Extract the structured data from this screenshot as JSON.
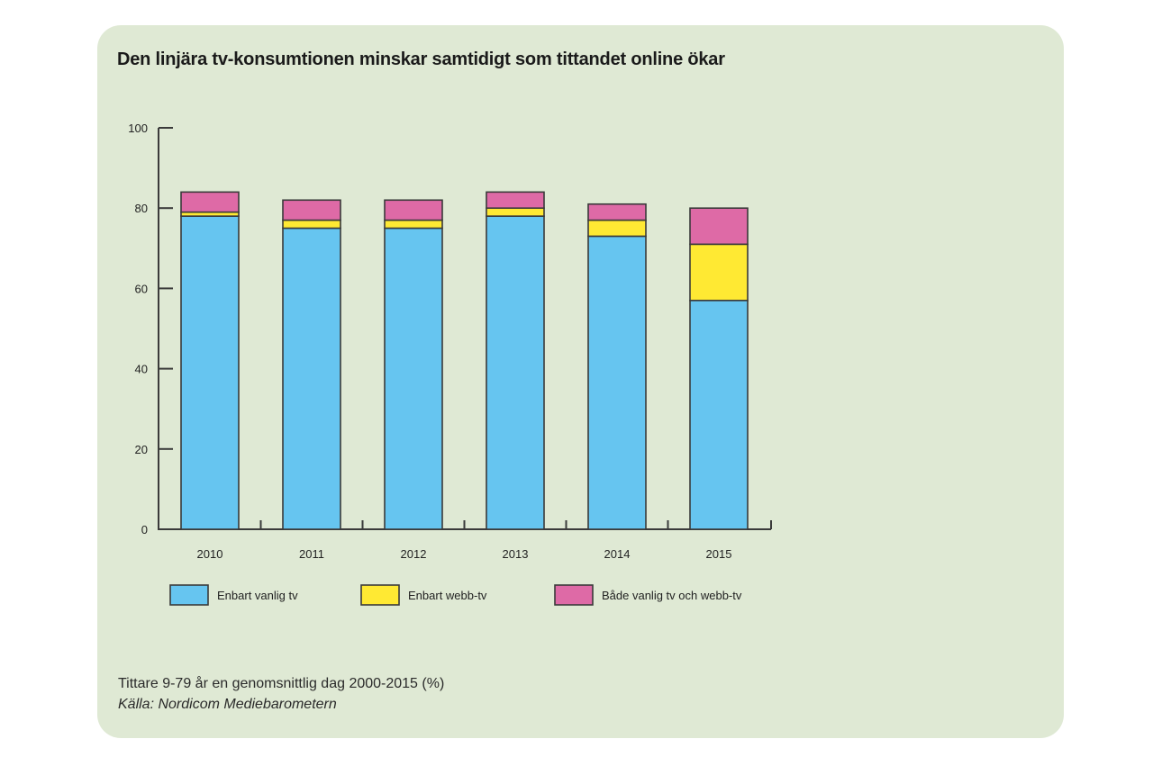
{
  "title": "Den linjära tv-konsumtionen minskar samtidigt som tittandet online ökar",
  "footer": {
    "note": "Tittare 9-79 år en genomsnittlig dag 2000-2015 (%)",
    "source": "Källa: Nordicom Mediebarometern"
  },
  "colors": {
    "card_bg": "#dfe9d4",
    "enbart_vanlig_tv": "#66c5f0",
    "enbart_webb_tv": "#ffe933",
    "bade": "#de6aa6",
    "stroke": "#3a3a3a"
  },
  "chart_data": {
    "type": "bar",
    "stacked": true,
    "title": "Den linjära tv-konsumtionen minskar samtidigt som tittandet online ökar",
    "xlabel": "",
    "ylabel": "",
    "ylim": [
      0,
      100
    ],
    "yticks": [
      0,
      20,
      40,
      60,
      80,
      100
    ],
    "categories": [
      "2010",
      "2011",
      "2012",
      "2013",
      "2014",
      "2015"
    ],
    "series": [
      {
        "name": "Enbart vanlig tv",
        "color": "#66c5f0",
        "values": [
          78,
          75,
          75,
          78,
          73,
          57
        ]
      },
      {
        "name": "Enbart webb-tv",
        "color": "#ffe933",
        "values": [
          1,
          2,
          2,
          2,
          4,
          14
        ]
      },
      {
        "name": "Både vanlig tv och webb-tv",
        "color": "#de6aa6",
        "values": [
          5,
          5,
          5,
          4,
          4,
          9
        ]
      }
    ],
    "legend_position": "bottom",
    "grid": false,
    "annotations": [
      "Tittare 9-79 år en genomsnittlig dag 2000-2015 (%)",
      "Källa: Nordicom Mediebarometern"
    ]
  }
}
